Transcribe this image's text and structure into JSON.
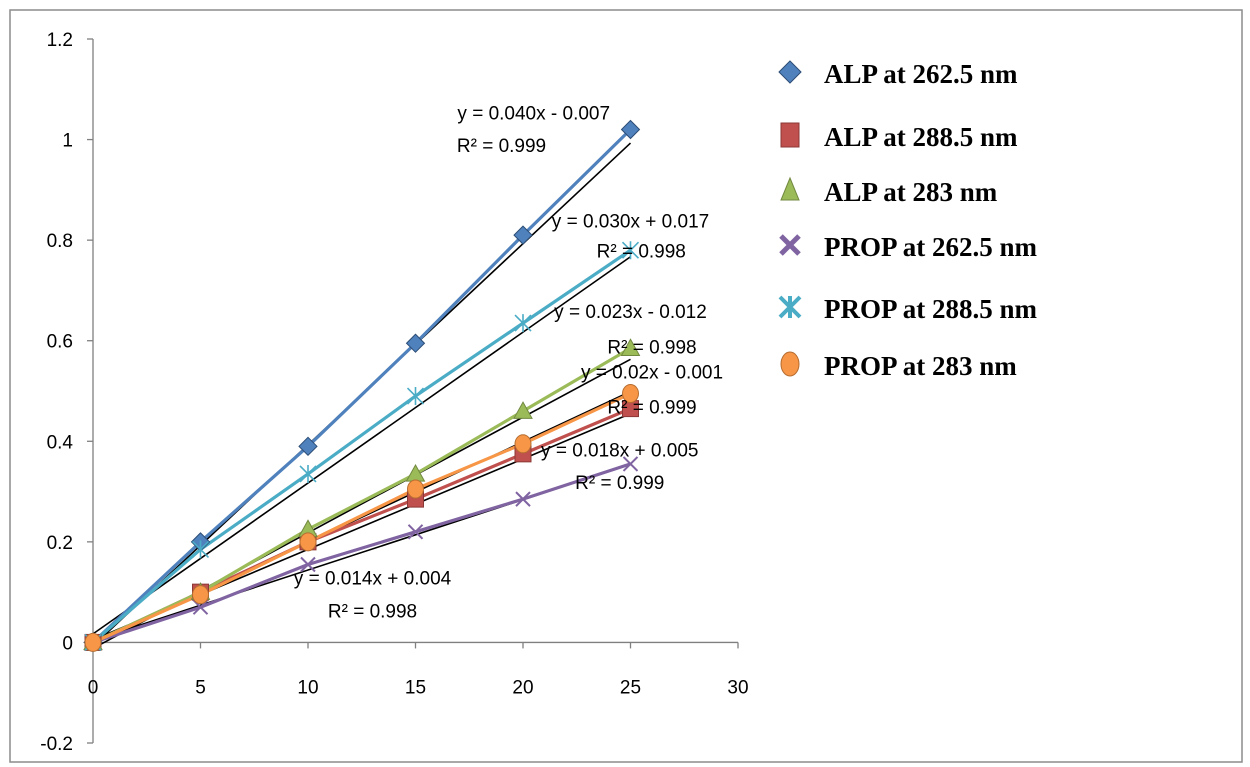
{
  "chart_data": {
    "type": "scatter",
    "title": "",
    "xlabel": "",
    "ylabel": "",
    "xlim": [
      0,
      30
    ],
    "ylim": [
      -0.2,
      1.2
    ],
    "x_ticks": [
      0,
      5,
      10,
      15,
      20,
      25,
      30
    ],
    "y_ticks": [
      -0.2,
      0,
      0.2,
      0.4,
      0.6,
      0.8,
      1,
      1.2
    ],
    "x_tick_labels": [
      "0",
      "5",
      "10",
      "15",
      "20",
      "25",
      "30"
    ],
    "y_tick_labels": [
      "-0.2",
      "0",
      "0.2",
      "0.4",
      "0.6",
      "0.8",
      "1",
      "1.2"
    ],
    "grid": false,
    "legend_position": "right",
    "x": [
      0,
      5,
      10,
      15,
      20,
      25
    ],
    "series": [
      {
        "name": "ALP at 262.5 nm",
        "marker": "diamond",
        "color": "#4F81BD",
        "values": [
          0,
          0.2,
          0.39,
          0.595,
          0.81,
          1.02
        ],
        "trendline": {
          "slope": 0.04,
          "intercept": -0.007
        }
      },
      {
        "name": "ALP at 288.5 nm",
        "marker": "square",
        "color": "#C0504D",
        "values": [
          0,
          0.1,
          0.2,
          0.285,
          0.375,
          0.465
        ],
        "trendline": {
          "slope": 0.018,
          "intercept": 0.005
        }
      },
      {
        "name": "ALP at 283 nm",
        "marker": "triangle",
        "color": "#9BBB59",
        "values": [
          0,
          0.1,
          0.225,
          0.335,
          0.46,
          0.585
        ],
        "trendline": {
          "slope": 0.023,
          "intercept": -0.012
        }
      },
      {
        "name": "PROP at 262.5 nm",
        "marker": "x",
        "color": "#8064A2",
        "values": [
          0,
          0.07,
          0.155,
          0.22,
          0.285,
          0.355
        ],
        "trendline": {
          "slope": 0.014,
          "intercept": 0.004
        }
      },
      {
        "name": "PROP at 288.5 nm",
        "marker": "star",
        "color": "#4BACC6",
        "values": [
          0,
          0.185,
          0.335,
          0.49,
          0.635,
          0.78
        ],
        "trendline": {
          "slope": 0.03,
          "intercept": 0.017
        }
      },
      {
        "name": "PROP at 283 nm",
        "marker": "circle",
        "color": "#F79646",
        "values": [
          0,
          0.095,
          0.2,
          0.305,
          0.395,
          0.495
        ],
        "trendline": {
          "slope": 0.02,
          "intercept": -0.001
        }
      }
    ],
    "annotations": [
      {
        "eq": "y = 0.040x - 0.007",
        "r2": "R² = 0.999",
        "at": [
          20.5,
          1.04
        ],
        "r2_at": [
          19.0,
          0.975
        ]
      },
      {
        "eq": "y = 0.030x + 0.017",
        "r2": "R² = 0.998",
        "at": [
          25.0,
          0.825
        ],
        "r2_at": [
          25.5,
          0.765
        ]
      },
      {
        "eq": "y = 0.023x - 0.012",
        "r2": "R² = 0.998",
        "at": [
          25.0,
          0.645
        ],
        "r2_at": [
          26.0,
          0.575
        ]
      },
      {
        "eq": "y = 0.02x - 0.001",
        "r2": "R² = 0.999",
        "at": [
          26.0,
          0.525
        ],
        "r2_at": [
          26.0,
          0.455
        ]
      },
      {
        "eq": "y = 0.018x + 0.005",
        "r2": "R² = 0.999",
        "at": [
          24.5,
          0.37
        ],
        "r2_at": [
          24.5,
          0.305
        ]
      },
      {
        "eq": "y = 0.014x + 0.004",
        "r2": "R² = 0.998",
        "at": [
          13.0,
          0.115
        ],
        "r2_at": [
          13.0,
          0.05
        ]
      }
    ]
  }
}
